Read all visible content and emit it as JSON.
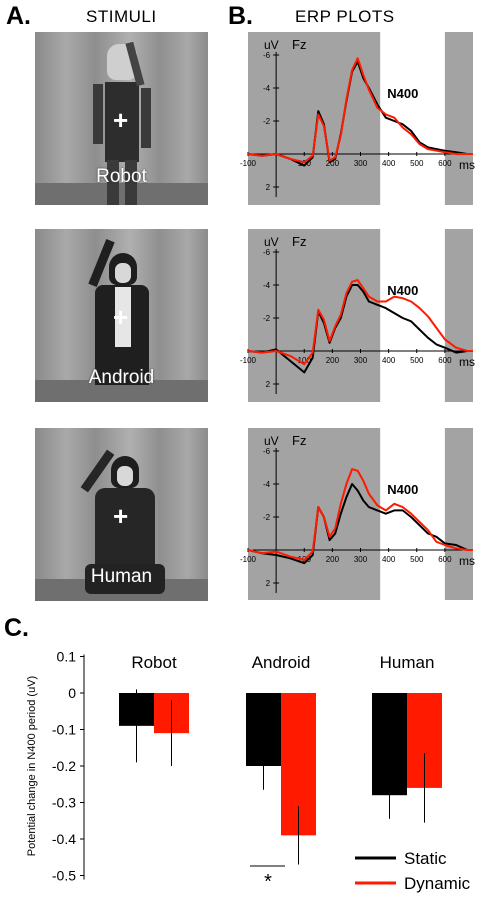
{
  "panel_a": {
    "letter": "A.",
    "title": "STIMULI",
    "stimuli": [
      {
        "label": "Robot"
      },
      {
        "label": "Android"
      },
      {
        "label": "Human"
      }
    ],
    "fixation": "+"
  },
  "panel_b": {
    "letter": "B.",
    "title": "ERP PLOTS",
    "unit_label": "uV",
    "electrode": "Fz",
    "component": "N400",
    "x_unit": "ms",
    "x_ticks": [
      "-100",
      "100",
      "200",
      "300",
      "400",
      "500",
      "600"
    ],
    "y_ticks": [
      "-6",
      "-4",
      "-2",
      "2"
    ]
  },
  "panel_c": {
    "letter": "C.",
    "ylabel": "Potential change in N400 period (uV)",
    "y_ticks": [
      "0.1",
      "0",
      "-0.1",
      "-0.2",
      "-0.3",
      "-0.4",
      "-0.5"
    ],
    "group_labels": [
      "Robot",
      "Android",
      "Human"
    ],
    "significance": "*",
    "legend": [
      {
        "name": "Static"
      },
      {
        "name": "Dynamic"
      }
    ]
  },
  "colors": {
    "static": "#000000",
    "dynamic": "#ff1a00",
    "shade": "#a3a3a3"
  },
  "chart_data": [
    {
      "type": "line",
      "panel": "B",
      "condition": "Robot",
      "ylim": [
        2,
        -6.5
      ],
      "xlim": [
        -100,
        700
      ],
      "x": [
        -100,
        -50,
        0,
        50,
        100,
        130,
        150,
        170,
        190,
        210,
        230,
        250,
        270,
        290,
        310,
        330,
        360,
        390,
        420,
        450,
        480,
        510,
        540,
        570,
        600,
        640,
        680,
        700
      ],
      "series": [
        {
          "name": "Static",
          "values": [
            0,
            0.1,
            0,
            0.3,
            0.7,
            0.2,
            -2.6,
            -1.8,
            0.5,
            0.3,
            -1.2,
            -3.2,
            -5.0,
            -5.6,
            -4.6,
            -4.0,
            -3.0,
            -2.2,
            -2.0,
            -1.8,
            -1.4,
            -0.7,
            -0.4,
            -0.3,
            -0.2,
            -0.1,
            0,
            0
          ]
        },
        {
          "name": "Dynamic",
          "values": [
            0,
            0.1,
            0,
            0.3,
            0.5,
            0.1,
            -2.4,
            -1.7,
            0.4,
            0.2,
            -1.1,
            -3.3,
            -5.1,
            -5.8,
            -4.8,
            -3.9,
            -2.8,
            -2.4,
            -2.2,
            -1.6,
            -1.2,
            -0.6,
            -0.3,
            -0.2,
            -0.1,
            0,
            0,
            0
          ]
        }
      ]
    },
    {
      "type": "line",
      "panel": "B",
      "condition": "Android",
      "ylim": [
        2,
        -6.5
      ],
      "xlim": [
        -100,
        700
      ],
      "x": [
        -100,
        -50,
        0,
        50,
        100,
        130,
        150,
        170,
        190,
        210,
        230,
        250,
        270,
        290,
        310,
        330,
        360,
        390,
        420,
        450,
        480,
        510,
        540,
        570,
        600,
        640,
        680,
        700
      ],
      "series": [
        {
          "name": "Static",
          "values": [
            0,
            0.1,
            -0.1,
            0.6,
            1.3,
            0.4,
            -2.4,
            -1.7,
            -0.5,
            -1.4,
            -2.0,
            -3.3,
            -4.0,
            -4.0,
            -3.6,
            -3.0,
            -2.8,
            -2.6,
            -2.3,
            -2.0,
            -1.8,
            -1.3,
            -0.8,
            -0.4,
            -0.2,
            0.1,
            0,
            0
          ]
        },
        {
          "name": "Dynamic",
          "values": [
            0,
            0.1,
            0,
            0.3,
            0.8,
            0.1,
            -2.5,
            -1.9,
            -0.6,
            -1.5,
            -2.2,
            -3.5,
            -4.2,
            -4.3,
            -3.8,
            -3.3,
            -3.0,
            -3.0,
            -3.3,
            -3.2,
            -3.0,
            -2.6,
            -2.1,
            -1.4,
            -0.7,
            -0.2,
            0,
            0
          ]
        }
      ]
    },
    {
      "type": "line",
      "panel": "B",
      "condition": "Human",
      "ylim": [
        2,
        -6.5
      ],
      "xlim": [
        -100,
        700
      ],
      "x": [
        -100,
        -50,
        0,
        50,
        100,
        130,
        150,
        170,
        190,
        210,
        230,
        250,
        270,
        290,
        310,
        330,
        360,
        390,
        420,
        450,
        480,
        510,
        540,
        570,
        600,
        640,
        680,
        700
      ],
      "series": [
        {
          "name": "Static",
          "values": [
            0,
            0.2,
            0.3,
            0.5,
            0.8,
            0.3,
            -2.6,
            -2.0,
            -0.6,
            -1.0,
            -2.2,
            -3.2,
            -4.0,
            -3.6,
            -3.0,
            -2.6,
            -2.4,
            -2.2,
            -2.4,
            -2.4,
            -2.0,
            -1.5,
            -1.0,
            -0.8,
            -0.4,
            -0.3,
            0,
            0
          ]
        },
        {
          "name": "Dynamic",
          "values": [
            0,
            0.2,
            0.1,
            0.4,
            0.6,
            0.1,
            -2.6,
            -2.0,
            -0.8,
            -1.3,
            -2.8,
            -4.0,
            -4.9,
            -4.8,
            -4.2,
            -3.4,
            -2.7,
            -2.4,
            -2.8,
            -2.6,
            -2.2,
            -1.7,
            -1.2,
            -0.5,
            -0.3,
            -0.1,
            0,
            0
          ]
        }
      ]
    },
    {
      "type": "bar",
      "panel": "C",
      "ylim": [
        -0.5,
        0.1
      ],
      "categories": [
        "Robot",
        "Android",
        "Human"
      ],
      "series": [
        {
          "name": "Static",
          "values": [
            -0.09,
            -0.2,
            -0.28
          ],
          "error": [
            0.1,
            0.065,
            0.065
          ]
        },
        {
          "name": "Dynamic",
          "values": [
            -0.11,
            -0.39,
            -0.26
          ],
          "error": [
            0.09,
            0.08,
            0.095
          ]
        }
      ]
    }
  ]
}
